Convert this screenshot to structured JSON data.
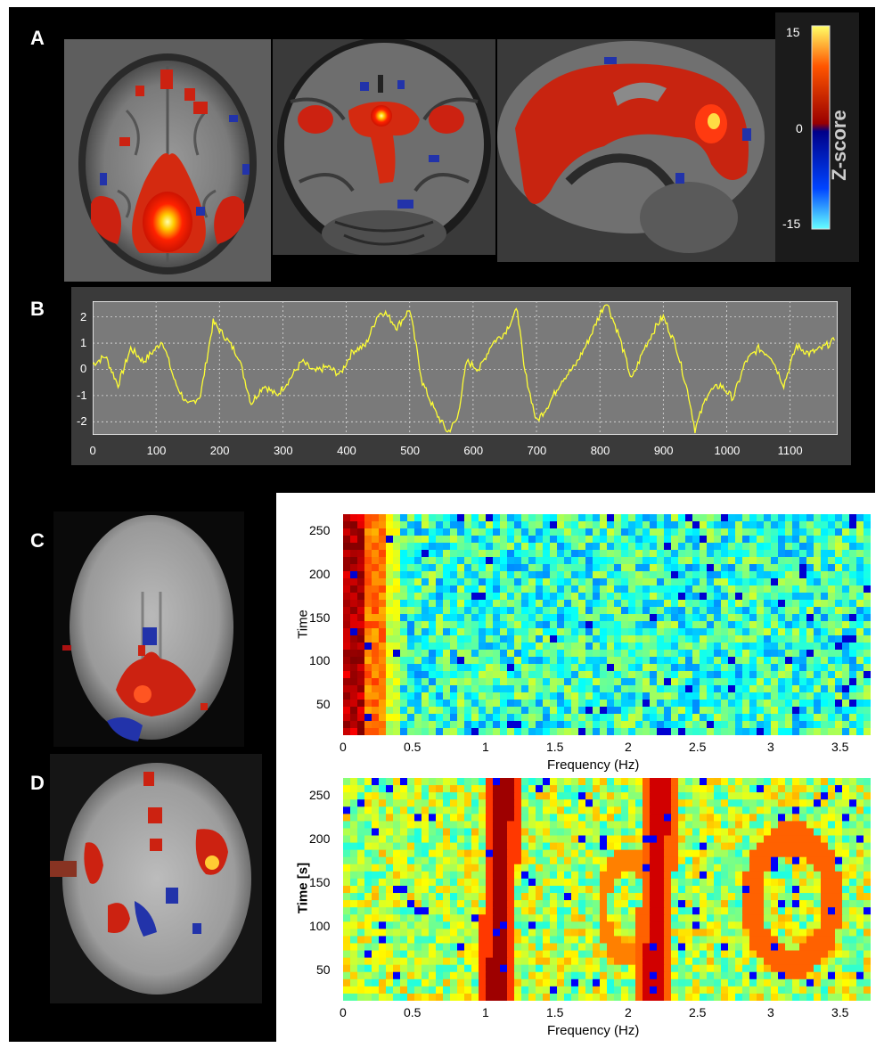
{
  "panels": {
    "A": "A",
    "B": "B",
    "C": "C",
    "D": "D"
  },
  "colorbar": {
    "label": "Z-score",
    "ticks": [
      "15",
      "0",
      "-15"
    ],
    "colors": [
      "#ffff55",
      "#ff3300",
      "#aa0000",
      "#000099",
      "#00ffff"
    ]
  },
  "timeseries": {
    "xticks": [
      "0",
      "100",
      "200",
      "300",
      "400",
      "500",
      "600",
      "700",
      "800",
      "900",
      "1000",
      "1100"
    ],
    "yticks": [
      "2",
      "1",
      "0",
      "-1",
      "-2"
    ],
    "xlim": [
      0,
      1175
    ],
    "ylim": [
      -2.5,
      2.6
    ],
    "line_color": "#ffff33",
    "chart_data": {
      "type": "line",
      "x": [
        0,
        20,
        40,
        60,
        80,
        100,
        110,
        130,
        150,
        170,
        190,
        210,
        230,
        250,
        270,
        290,
        310,
        330,
        350,
        370,
        390,
        410,
        430,
        450,
        460,
        480,
        500,
        520,
        540,
        560,
        575,
        590,
        610,
        630,
        650,
        670,
        680,
        700,
        720,
        740,
        760,
        780,
        800,
        810,
        830,
        850,
        870,
        890,
        900,
        920,
        940,
        950,
        970,
        990,
        1010,
        1030,
        1050,
        1070,
        1090,
        1110,
        1130,
        1150,
        1170
      ],
      "y": [
        0.2,
        0.5,
        -0.6,
        0.8,
        0.3,
        0.8,
        1.1,
        -0.5,
        -1.4,
        -1.0,
        1.8,
        1.2,
        0.5,
        -1.3,
        -0.6,
        -1.0,
        -0.4,
        0.3,
        -0.1,
        0.1,
        -0.2,
        0.7,
        0.9,
        2.1,
        2.2,
        1.6,
        2.3,
        -0.5,
        -1.6,
        -2.4,
        -1.9,
        0.3,
        0.0,
        1.0,
        1.4,
        2.3,
        0.1,
        -2.0,
        -1.3,
        -0.4,
        0.1,
        1.0,
        2.1,
        2.6,
        1.3,
        -0.4,
        0.8,
        1.7,
        2.0,
        0.9,
        -1.0,
        -2.3,
        -0.9,
        -0.6,
        -1.1,
        0.3,
        0.8,
        0.5,
        -0.6,
        0.9,
        0.6,
        0.8,
        1.1
      ]
    }
  },
  "spectrogram_c": {
    "ylabel": "Time",
    "xlabel": "Frequency (Hz)",
    "xticks": [
      "0",
      "0.5",
      "1",
      "1.5",
      "2",
      "2.5",
      "3",
      "3.5"
    ],
    "yticks": [
      "250",
      "200",
      "150",
      "100",
      "50"
    ]
  },
  "spectrogram_d": {
    "ylabel": "Time [s]",
    "xlabel": "Frequency (Hz)",
    "xticks": [
      "0",
      "0.5",
      "1",
      "1.5",
      "2",
      "2.5",
      "3",
      "3.5"
    ],
    "yticks": [
      "250",
      "200",
      "150",
      "100",
      "50"
    ]
  }
}
